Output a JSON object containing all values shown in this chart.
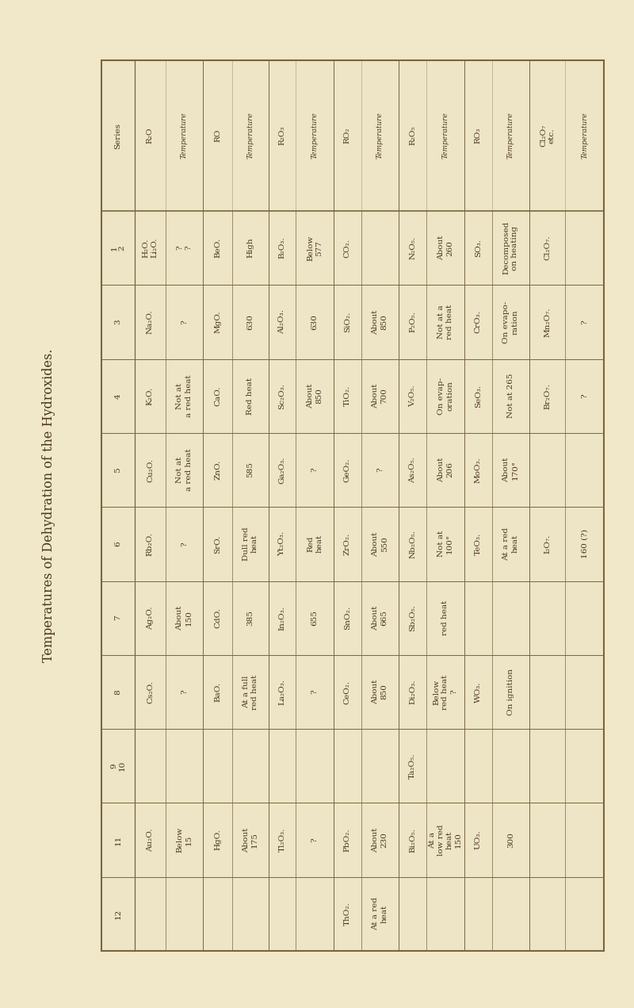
{
  "title": "Temperatures of Dehydration of the Hydroxides.",
  "bg_color": "#f0e8c8",
  "table_bg": "#ede5c5",
  "border_color": "#7a6540",
  "text_color": "#4a3520",
  "series_col": {
    "header": "Series",
    "values": [
      "1\n2",
      "3",
      "4",
      "5",
      "6",
      "7",
      "8",
      "9\n10",
      "11",
      "12"
    ]
  },
  "columns": [
    {
      "oxide_header": "R₂O",
      "temp_header": "Temperature",
      "entries": [
        {
          "oxide": "H₂O.\nLi₂O.",
          "temp": "?\n?"
        },
        {
          "oxide": "Na₂O.",
          "temp": "?"
        },
        {
          "oxide": "K₂O.",
          "temp": "Not at\na red heat"
        },
        {
          "oxide": "Cu₂O.",
          "temp": "Not at\na red heat"
        },
        {
          "oxide": "Rb₂O.",
          "temp": "?"
        },
        {
          "oxide": "Ag₂O.",
          "temp": "About\n150"
        },
        {
          "oxide": "Cs₂O.",
          "temp": "?"
        },
        {
          "oxide": "...",
          "temp": "..."
        },
        {
          "oxide": "Au₂O.",
          "temp": "Below\n15"
        },
        {
          "oxide": "...",
          "temp": "..."
        }
      ]
    },
    {
      "oxide_header": "RO",
      "temp_header": "Temperature",
      "entries": [
        {
          "oxide": "BeO.",
          "temp": "High"
        },
        {
          "oxide": "MgO.",
          "temp": "630"
        },
        {
          "oxide": "CaO.",
          "temp": "Red heat"
        },
        {
          "oxide": "ZnO.",
          "temp": "585"
        },
        {
          "oxide": "SrO.",
          "temp": "Dull red\nheat"
        },
        {
          "oxide": "CdO.",
          "temp": "385"
        },
        {
          "oxide": "BaO.",
          "temp": "At a full\nred heat"
        },
        {
          "oxide": "...",
          "temp": "..."
        },
        {
          "oxide": "HgO.",
          "temp": "About\n175"
        },
        {
          "oxide": "...",
          "temp": "..."
        }
      ]
    },
    {
      "oxide_header": "R₂O₃",
      "temp_header": "Temperature",
      "entries": [
        {
          "oxide": "B₂O₃.",
          "temp": "Below\n577"
        },
        {
          "oxide": "Al₂O₃.",
          "temp": "630"
        },
        {
          "oxide": "Sc₂O₃.",
          "temp": "About\n850"
        },
        {
          "oxide": "Ga₂O₃.",
          "temp": "?"
        },
        {
          "oxide": "Yt₂O₃.",
          "temp": "Red\nheat"
        },
        {
          "oxide": "In₂O₃.",
          "temp": "655"
        },
        {
          "oxide": "La₂O₃.",
          "temp": "?"
        },
        {
          "oxide": "...",
          "temp": "..."
        },
        {
          "oxide": "Tl₂O₃.",
          "temp": "?"
        },
        {
          "oxide": "...",
          "temp": "..."
        }
      ]
    },
    {
      "oxide_header": "RO₂",
      "temp_header": "Temperature",
      "entries": [
        {
          "oxide": "CO₂.",
          "temp": "..."
        },
        {
          "oxide": "SiO₂.",
          "temp": "About\n850"
        },
        {
          "oxide": "TiO₂.",
          "temp": "About\n700"
        },
        {
          "oxide": "GeO₂.",
          "temp": "?"
        },
        {
          "oxide": "ZrO₂.",
          "temp": "About\n550"
        },
        {
          "oxide": "SnO₂.",
          "temp": "About\n665"
        },
        {
          "oxide": "CeO₂.",
          "temp": "About\n850"
        },
        {
          "oxide": "...",
          "temp": "..."
        },
        {
          "oxide": "PbO₂.",
          "temp": "About\n230"
        },
        {
          "oxide": "ThO₂.",
          "temp": "At a red\nheat"
        }
      ]
    },
    {
      "oxide_header": "R₂O₅",
      "temp_header": "Temperature",
      "entries": [
        {
          "oxide": "N₂O₅.",
          "temp": "About\n260"
        },
        {
          "oxide": "P₂O₅.",
          "temp": "Not at a\nred heat"
        },
        {
          "oxide": "V₂O₅.",
          "temp": "On evap-\noration"
        },
        {
          "oxide": "As₂O₅.",
          "temp": "About\n206"
        },
        {
          "oxide": "Nb₂O₅.",
          "temp": "Not at\n100°"
        },
        {
          "oxide": "Sb₂O₅.",
          "temp": "red heat"
        },
        {
          "oxide": "Di₂O₃.",
          "temp": "Below\nred heat\n?"
        },
        {
          "oxide": "Ta₂O₅.",
          "temp": "..."
        },
        {
          "oxide": "Bi₂O₅.",
          "temp": "At a\nlow red\nheat\n150"
        },
        {
          "oxide": "...",
          "temp": "..."
        }
      ]
    },
    {
      "oxide_header": "RO₃",
      "temp_header": "Temperature",
      "entries": [
        {
          "oxide": "SO₃.",
          "temp": "Decomposed\non heating"
        },
        {
          "oxide": "CrO₃.",
          "temp": "On evapo-\nration"
        },
        {
          "oxide": "SeO₃.",
          "temp": "Not at 265"
        },
        {
          "oxide": "MoO₃.",
          "temp": "About\n170°"
        },
        {
          "oxide": "TeO₃.",
          "temp": "At a red\nheat"
        },
        {
          "oxide": "...",
          "temp": "..."
        },
        {
          "oxide": "WO₃.",
          "temp": "On ignition"
        },
        {
          "oxide": "...",
          "temp": "..."
        },
        {
          "oxide": "UO₃.",
          "temp": "300"
        },
        {
          "oxide": "...",
          "temp": "..."
        }
      ]
    },
    {
      "oxide_header": "Cl₂O₇\netc.",
      "temp_header": "Temperature",
      "entries": [
        {
          "oxide": "Cl₂O₇.",
          "temp": "..."
        },
        {
          "oxide": "Mn₂O₇.",
          "temp": "?"
        },
        {
          "oxide": "Br₂O₇.",
          "temp": "?"
        },
        {
          "oxide": "...",
          "temp": "..."
        },
        {
          "oxide": "I₂O₇.",
          "temp": "160 (?)"
        },
        {
          "oxide": "...",
          "temp": "..."
        },
        {
          "oxide": "...",
          "temp": "..."
        },
        {
          "oxide": "...",
          "temp": "..."
        },
        {
          "oxide": "...",
          "temp": "..."
        },
        {
          "oxide": "...",
          "temp": "..."
        }
      ]
    }
  ]
}
